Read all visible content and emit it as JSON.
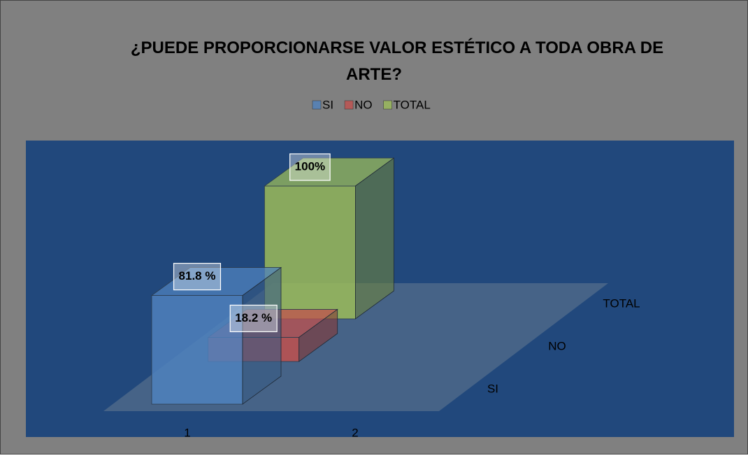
{
  "chart_data": {
    "type": "bar3d",
    "title": "¿PUEDE PROPORCIONARSE VALOR ESTÉTICO A TODA OBRA DE ARTE?",
    "categories": [
      "1",
      "2"
    ],
    "series": [
      {
        "name": "SI",
        "color": "#4f81bd",
        "values": [
          81.8,
          null
        ],
        "value_labels": [
          "81.8 %",
          null
        ]
      },
      {
        "name": "NO",
        "color": "#c0504d",
        "values": [
          18.2,
          null
        ],
        "value_labels": [
          "18.2 %",
          null
        ]
      },
      {
        "name": "TOTAL",
        "color": "#9bbb59",
        "values": [
          100,
          null
        ],
        "value_labels": [
          "100%",
          null
        ]
      }
    ],
    "legend": "top"
  }
}
